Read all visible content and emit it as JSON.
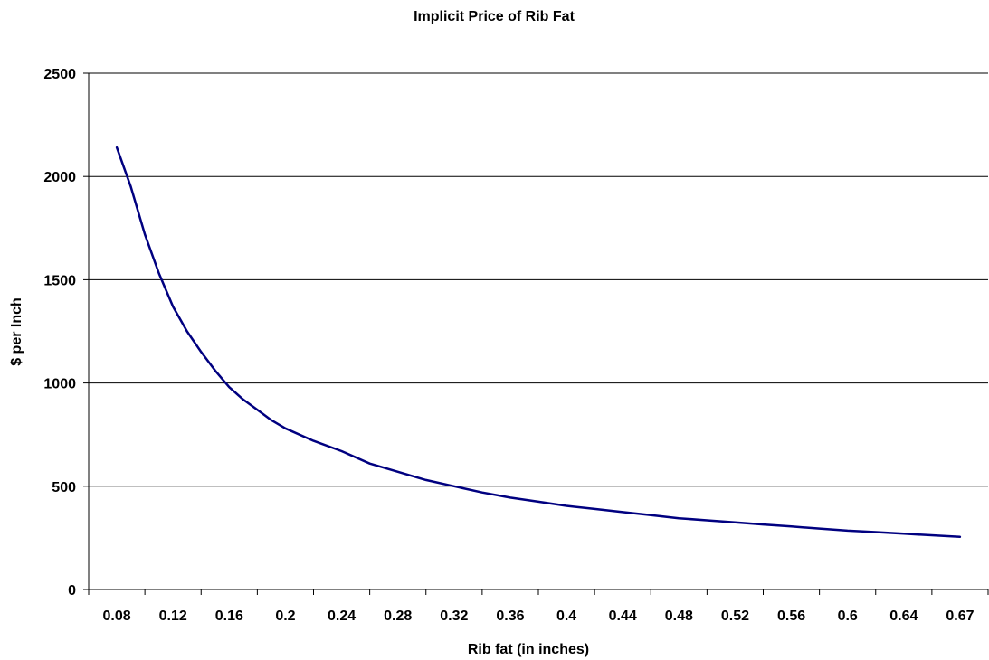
{
  "chart_data": {
    "type": "line",
    "title": "Implicit Price of Rib Fat",
    "xlabel": "Rib fat (in inches)",
    "ylabel": "$ per Inch",
    "categories": [
      "0.08",
      "0.12",
      "0.16",
      "0.2",
      "0.24",
      "0.28",
      "0.32",
      "0.36",
      "0.4",
      "0.44",
      "0.48",
      "0.52",
      "0.56",
      "0.6",
      "0.64",
      "0.67"
    ],
    "x": [
      0.08,
      0.09,
      0.1,
      0.11,
      0.12,
      0.13,
      0.14,
      0.15,
      0.16,
      0.17,
      0.18,
      0.19,
      0.2,
      0.22,
      0.24,
      0.26,
      0.28,
      0.3,
      0.32,
      0.34,
      0.36,
      0.38,
      0.4,
      0.42,
      0.44,
      0.46,
      0.48,
      0.5,
      0.52,
      0.54,
      0.56,
      0.58,
      0.6,
      0.62,
      0.64,
      0.67
    ],
    "series": [
      {
        "values": [
          2140,
          1950,
          1720,
          1530,
          1370,
          1250,
          1150,
          1060,
          980,
          920,
          870,
          820,
          780,
          720,
          670,
          610,
          570,
          530,
          500,
          470,
          445,
          425,
          405,
          390,
          375,
          360,
          345,
          335,
          325,
          315,
          305,
          295,
          285,
          278,
          270,
          255
        ]
      }
    ],
    "yticks": [
      "0",
      "500",
      "1000",
      "1500",
      "2000",
      "2500"
    ],
    "ylim": [
      0,
      2500
    ],
    "grid": "horizontal",
    "legend": "none",
    "colors": {
      "line": "#000080",
      "grid": "#000000",
      "axis": "#000000",
      "background": "#ffffff"
    }
  }
}
